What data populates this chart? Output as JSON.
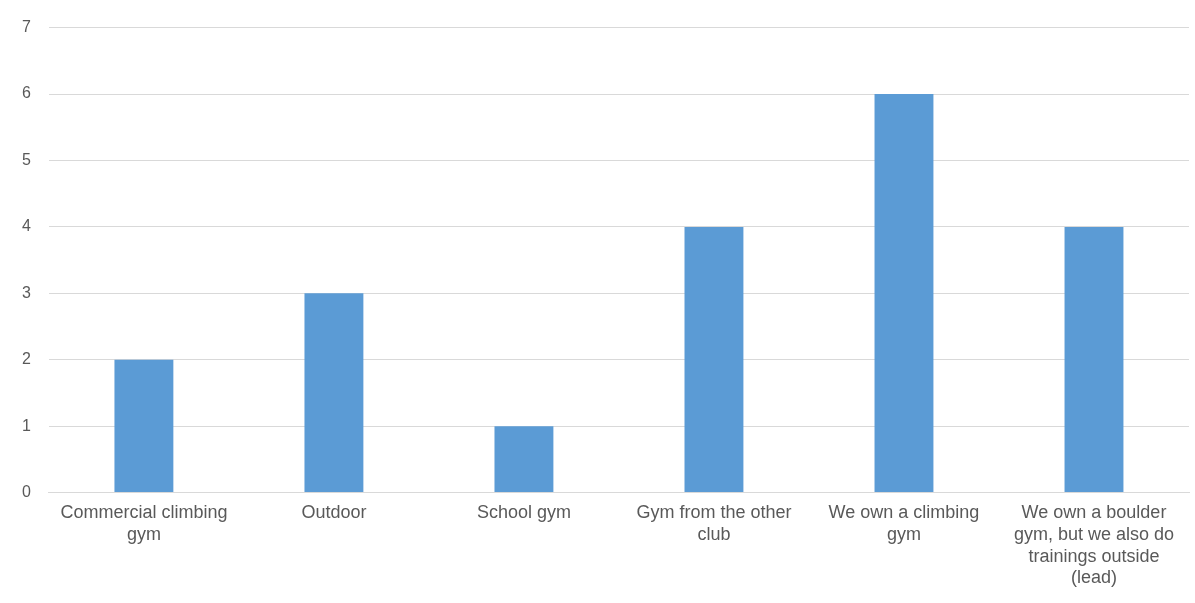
{
  "chart_data": {
    "type": "bar",
    "categories": [
      "Commercial climbing gym",
      "Outdoor",
      "School gym",
      "Gym from the other club",
      "We own a climbing gym",
      "We own a boulder gym, but we also do trainings outside (lead)"
    ],
    "values": [
      2,
      3,
      1,
      4,
      6,
      4
    ],
    "color": "#5b9bd5",
    "ylim": [
      0,
      7
    ],
    "yticks": [
      0,
      1,
      2,
      3,
      4,
      5,
      6,
      7
    ],
    "grid": "y"
  }
}
